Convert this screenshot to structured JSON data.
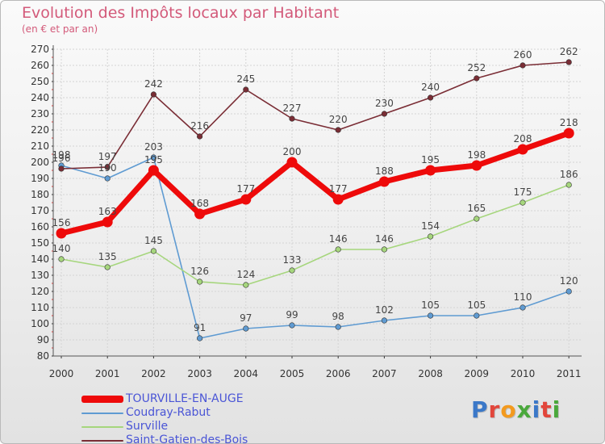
{
  "header": {
    "title": "Evolution des Impôts locaux par Habitant",
    "subtitle": "(en € et par an)"
  },
  "brand": {
    "text": "Proxiti",
    "colors": [
      "#3b78c8",
      "#e2463b",
      "#f39a1e",
      "#4aa83c",
      "#3b78c8",
      "#e2463b",
      "#4aa83c"
    ]
  },
  "colors": {
    "title": "#d35a7a",
    "axis_text": "#333333",
    "grid": "#d4d4d4",
    "axis_tick_red": "#e53b3b"
  },
  "chart_data": {
    "type": "line",
    "x": [
      "2000",
      "2001",
      "2002",
      "2003",
      "2004",
      "2005",
      "2006",
      "2007",
      "2008",
      "2009",
      "2010",
      "2011"
    ],
    "yticks": [
      80,
      90,
      100,
      110,
      120,
      130,
      140,
      150,
      160,
      170,
      180,
      190,
      200,
      210,
      220,
      230,
      240,
      250,
      260,
      270
    ],
    "ylim": [
      80,
      270
    ],
    "grid": true,
    "legend_position": "bottom-left",
    "series": [
      {
        "name": "TOURVILLE-EN-AUGE",
        "values": [
          156,
          163,
          195,
          168,
          177,
          200,
          177,
          188,
          195,
          198,
          208,
          218
        ],
        "color": "#ee0a0a",
        "emphasis": true
      },
      {
        "name": "Coudray-Rabut",
        "values": [
          198,
          190,
          203,
          91,
          97,
          99,
          98,
          102,
          105,
          105,
          110,
          120
        ],
        "color": "#5f9bd2",
        "emphasis": false
      },
      {
        "name": "Surville",
        "values": [
          140,
          135,
          145,
          126,
          124,
          133,
          146,
          146,
          154,
          165,
          175,
          186
        ],
        "color": "#a6d67d",
        "emphasis": false
      },
      {
        "name": "Saint-Gatien-des-Bois",
        "values": [
          196,
          197,
          242,
          216,
          245,
          227,
          220,
          230,
          240,
          252,
          260,
          262
        ],
        "color": "#7a2d35",
        "emphasis": false
      }
    ]
  }
}
